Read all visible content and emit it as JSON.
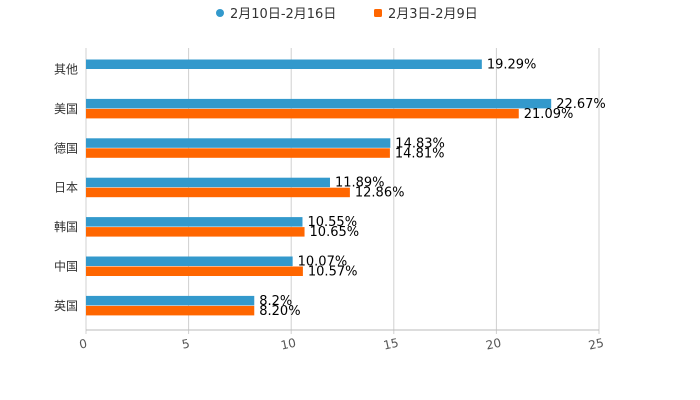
{
  "chart_data": {
    "type": "bar",
    "orientation": "horizontal",
    "title": "",
    "xlabel": "",
    "ylabel": "",
    "xlim": [
      0,
      25
    ],
    "xticks": [
      0,
      5,
      10,
      15,
      20,
      25
    ],
    "grid": true,
    "legend_position": "top-center",
    "categories": [
      "其他",
      "美国",
      "德国",
      "日本",
      "韩国",
      "中国",
      "英国"
    ],
    "series": [
      {
        "name": "2月10日-2月16日",
        "color": "#3399cc",
        "marker": "circle",
        "values": [
          19.29,
          22.67,
          14.83,
          11.89,
          10.55,
          10.07,
          8.2
        ],
        "labels": [
          "19.29%",
          "22.67%",
          "14.83%",
          "11.89%",
          "10.55%",
          "10.07%",
          "8.2%"
        ]
      },
      {
        "name": "2月3日-2月9日",
        "color": "#ff6600",
        "marker": "square",
        "values": [
          null,
          21.09,
          14.81,
          12.86,
          10.65,
          10.57,
          8.2
        ],
        "labels": [
          null,
          "21.09%",
          "14.81%",
          "12.86%",
          "10.65%",
          "10.57%",
          "8.20%"
        ]
      }
    ]
  }
}
